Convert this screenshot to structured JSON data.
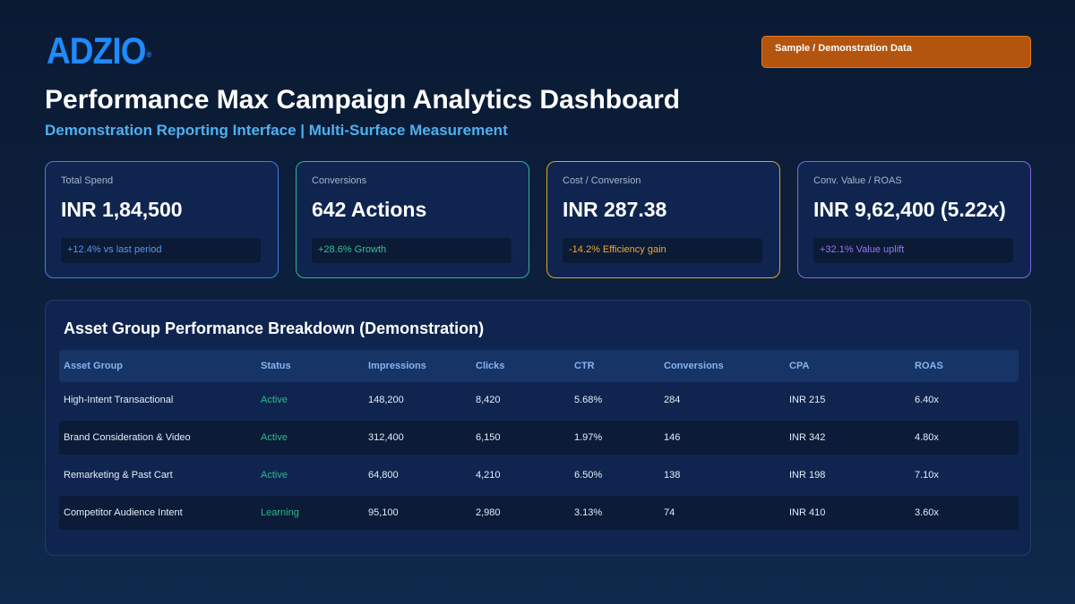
{
  "brand": {
    "logo_text": "ADZIO",
    "reg_mark": "®"
  },
  "badge": {
    "label": "Sample / Demonstration Data"
  },
  "header": {
    "title": "Performance Max Campaign Analytics Dashboard",
    "subtitle": "Demonstration Reporting Interface | Multi-Surface Measurement"
  },
  "kpis": [
    {
      "label": "Total Spend",
      "value": "INR 1,84,500",
      "delta": "+12.4% vs last period",
      "accent": "#3f7fe0",
      "delta_color": "#5b95f0"
    },
    {
      "label": "Conversions",
      "value": "642 Actions",
      "delta": "+28.6% Growth",
      "accent": "#25b895",
      "delta_color": "#2fc494"
    },
    {
      "label": "Cost / Conversion",
      "value": "INR 287.38",
      "delta": "-14.2% Efficiency gain",
      "accent": "#e0a420",
      "delta_color": "#f0a830"
    },
    {
      "label": "Conv. Value / ROAS",
      "value": "INR 9,62,400 (5.22x)",
      "delta": "+32.1% Value uplift",
      "accent": "#8a62e6",
      "delta_color": "#9a76f0"
    }
  ],
  "table": {
    "title": "Asset Group Performance Breakdown (Demonstration)",
    "columns": [
      "Asset Group",
      "Status",
      "Impressions",
      "Clicks",
      "CTR",
      "Conversions",
      "CPA",
      "ROAS"
    ],
    "rows": [
      [
        "High-Intent Transactional",
        "Active",
        "148,200",
        "8,420",
        "5.68%",
        "284",
        "INR 215",
        "6.40x"
      ],
      [
        "Brand Consideration & Video",
        "Active",
        "312,400",
        "6,150",
        "1.97%",
        "146",
        "INR 342",
        "4.80x"
      ],
      [
        "Remarketing & Past Cart",
        "Active",
        "64,800",
        "4,210",
        "6.50%",
        "138",
        "INR 198",
        "7.10x"
      ],
      [
        "Competitor Audience Intent",
        "Learning",
        "95,100",
        "2,980",
        "3.13%",
        "74",
        "INR 410",
        "3.60x"
      ]
    ]
  }
}
